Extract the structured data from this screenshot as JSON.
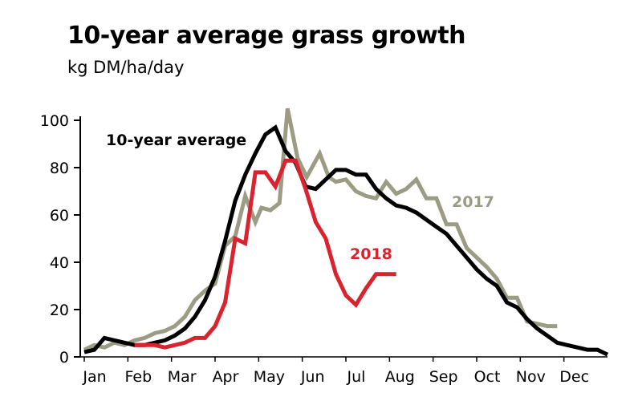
{
  "chart_data": {
    "type": "line",
    "title": "10-year average grass growth",
    "ylabel": "kg DM/ha/day",
    "xlabel": "",
    "ylim": [
      0,
      105
    ],
    "yticks": [
      0,
      20,
      40,
      60,
      80,
      100
    ],
    "month_labels": [
      "Jan",
      "Feb",
      "Mar",
      "Apr",
      "May",
      "Jun",
      "Jul",
      "Aug",
      "Sep",
      "Oct",
      "Nov",
      "Dec"
    ],
    "x_unit": "week of year",
    "xlim": [
      0,
      52
    ],
    "series": [
      {
        "name": "10-year average",
        "color": "#000000",
        "x": [
          0,
          1,
          2,
          3,
          4,
          5,
          6,
          7,
          8,
          9,
          10,
          11,
          12,
          13,
          14,
          15,
          16,
          17,
          18,
          19,
          20,
          21,
          22,
          23,
          24,
          25,
          26,
          27,
          28,
          29,
          30,
          31,
          32,
          33,
          34,
          35,
          36,
          37,
          38,
          39,
          40,
          41,
          42,
          43,
          44,
          45,
          46,
          47,
          48,
          49,
          50,
          51,
          52
        ],
        "values": [
          2,
          3,
          8,
          7,
          6,
          5,
          5,
          6,
          7,
          9,
          12,
          17,
          24,
          34,
          49,
          66,
          77,
          86,
          94,
          97,
          87,
          82,
          72,
          71,
          75,
          79,
          79,
          77,
          77,
          71,
          67,
          64,
          63,
          61,
          58,
          55,
          52,
          47,
          42,
          37,
          33,
          30,
          23,
          21,
          16,
          12,
          9,
          6,
          5,
          4,
          3,
          3,
          1
        ]
      },
      {
        "name": "2017",
        "color": "#9c9c85",
        "x": [
          0,
          1,
          2,
          3,
          4,
          5,
          6,
          7,
          8,
          9,
          10,
          11,
          12,
          13,
          14,
          15,
          16,
          17,
          17.6,
          18.5,
          19.4,
          20.2,
          21.2,
          22.1,
          23.4,
          24.3,
          25,
          26,
          27,
          28,
          29,
          30,
          31,
          32,
          33,
          34,
          35,
          36,
          37,
          38,
          39,
          40,
          41,
          42,
          43,
          44,
          45,
          46,
          47
        ],
        "values": [
          3,
          5,
          4,
          6,
          5,
          7,
          8,
          10,
          11,
          13,
          17,
          24,
          28,
          31,
          47,
          51,
          68,
          57,
          63,
          62,
          65,
          105,
          84,
          76,
          86,
          76,
          74,
          75,
          70,
          68,
          67,
          74,
          69,
          71,
          75,
          67,
          67,
          56,
          56,
          46,
          42,
          38,
          33,
          25,
          25,
          15,
          14,
          13,
          13
        ],
        "label": "2017"
      },
      {
        "name": "2018",
        "color": "#d9232e",
        "x": [
          5,
          6,
          7,
          8,
          9,
          10,
          11,
          12,
          13,
          14,
          15,
          16,
          17,
          18,
          19,
          20,
          21,
          22,
          23,
          24,
          25,
          26,
          27,
          28,
          29,
          30,
          31
        ],
        "values": [
          5,
          5,
          5,
          4,
          5,
          6,
          8,
          8,
          13,
          23,
          50,
          48,
          78,
          78,
          72,
          83,
          83,
          71,
          57,
          50,
          35,
          26,
          22,
          29,
          35,
          35,
          35
        ],
        "label": "2018"
      }
    ],
    "annotations": [
      "10-year average",
      "2017",
      "2018"
    ]
  }
}
